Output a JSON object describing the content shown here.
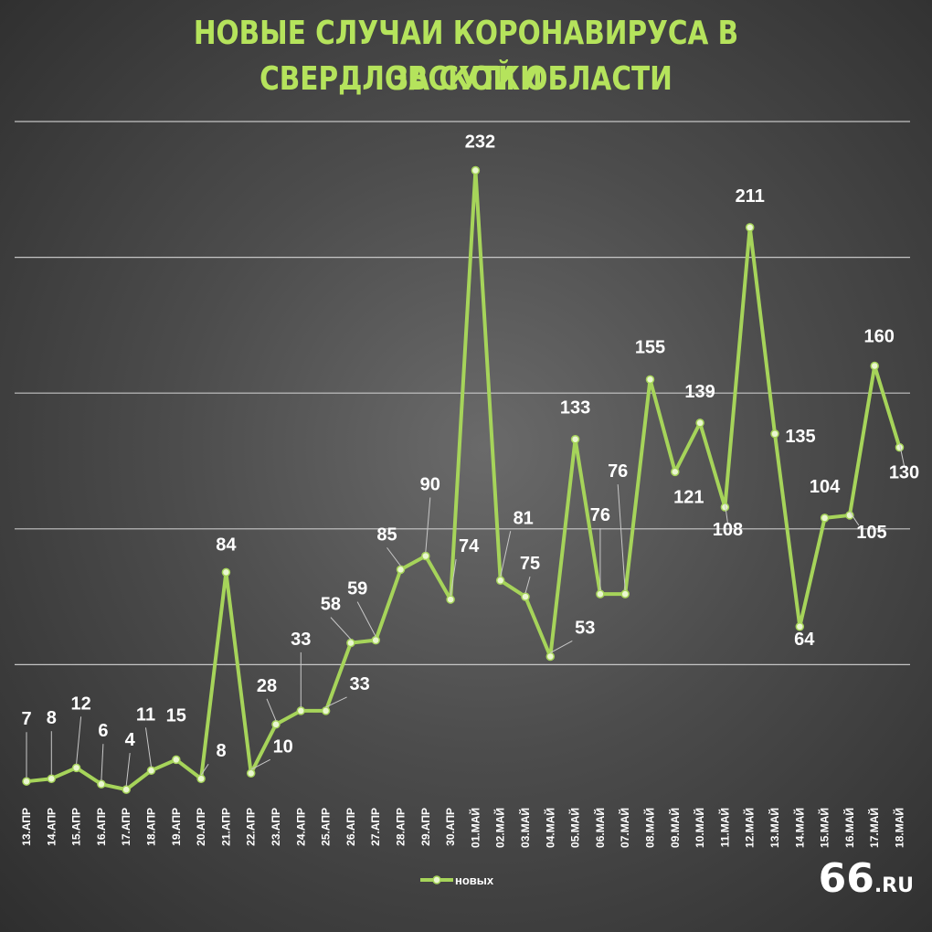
{
  "title_line1": "Новые случаи коронавируса в Свердловской области",
  "title_line2": "за сутки",
  "logo_main": "66",
  "logo_suffix": ".RU",
  "colors": {
    "line": "#a6d45a",
    "title": "#b5e35c",
    "label": "#ffffff",
    "grid": "#dcdcdc"
  },
  "chart_data": {
    "type": "line",
    "title": "Новые случаи коронавируса в Свердловской области за сутки",
    "categories": [
      "13.АПР",
      "14.АПР",
      "15.АПР",
      "16.АПР",
      "17.АПР",
      "18.АПР",
      "19.АПР",
      "20.АПР",
      "21.АПР",
      "22.АПР",
      "23.АПР",
      "24.АПР",
      "25.АПР",
      "26.АПР",
      "27.АПР",
      "28.АПР",
      "29.АПР",
      "30.АПР",
      "01.МАЙ",
      "02.МАЙ",
      "03.МАЙ",
      "04.МАЙ",
      "05.МАЙ",
      "06.МАЙ",
      "07.МАЙ",
      "08.МАЙ",
      "09.МАЙ",
      "10.МАЙ",
      "11.МАЙ",
      "12.МАЙ",
      "13.МАЙ",
      "14.МАЙ",
      "15.МАЙ",
      "16.МАЙ",
      "17.МАЙ",
      "18.МАЙ"
    ],
    "series": [
      {
        "name": "новых",
        "values": [
          7,
          8,
          12,
          6,
          4,
          11,
          15,
          8,
          84,
          10,
          28,
          33,
          33,
          58,
          59,
          85,
          90,
          74,
          232,
          81,
          75,
          53,
          133,
          76,
          76,
          155,
          121,
          139,
          108,
          211,
          135,
          64,
          104,
          105,
          160,
          130
        ]
      }
    ],
    "ylim": [
      0,
      250
    ],
    "grid": true,
    "legend": "bottom-center",
    "xlabel": "",
    "ylabel": ""
  }
}
